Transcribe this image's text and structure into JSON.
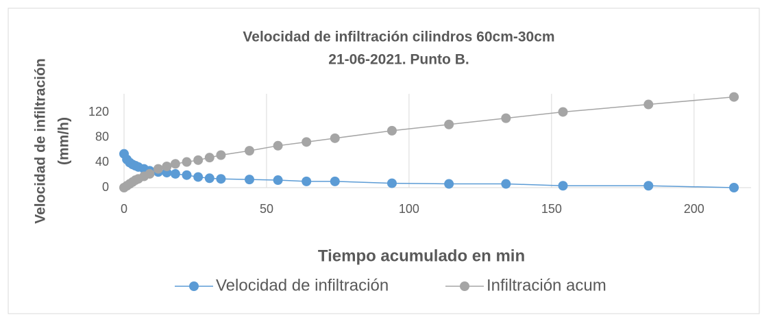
{
  "chart_data": {
    "type": "line",
    "title": [
      "Velocidad de infiltración cilindros 60cm-30cm",
      "21-06-2021. Punto B."
    ],
    "y_label": [
      "Velocidad de infiltración",
      "(mm/h)"
    ],
    "x_label": "Tiempo acumulado en min",
    "x": [
      0,
      1,
      2,
      3,
      4,
      5,
      7,
      9,
      12,
      15,
      18,
      22,
      26,
      30,
      34,
      44,
      54,
      64,
      74,
      94,
      114,
      134,
      154,
      184,
      214
    ],
    "series": [
      {
        "name": "Velocidad de infiltración",
        "color": "#5b9bd5",
        "values": [
          54,
          45,
          40,
          37,
          35,
          33,
          30,
          27,
          25,
          24,
          22,
          20,
          17,
          15,
          14,
          13,
          12,
          10,
          10,
          7,
          6,
          6,
          3,
          3,
          0
        ]
      },
      {
        "name": "Infiltración acum",
        "color": "#a5a5a5",
        "values": [
          0,
          3,
          6,
          9,
          12,
          14,
          18,
          22,
          30,
          34,
          38,
          41,
          44,
          48,
          52,
          59,
          67,
          73,
          79,
          91,
          101,
          111,
          121,
          133,
          145
        ]
      }
    ],
    "xlim": [
      0,
      220
    ],
    "xticks": [
      0,
      50,
      100,
      150,
      200
    ],
    "ylim": [
      0,
      150
    ],
    "yticks": [
      0,
      40,
      80,
      120
    ],
    "grid": "x",
    "legend": "bottom"
  }
}
